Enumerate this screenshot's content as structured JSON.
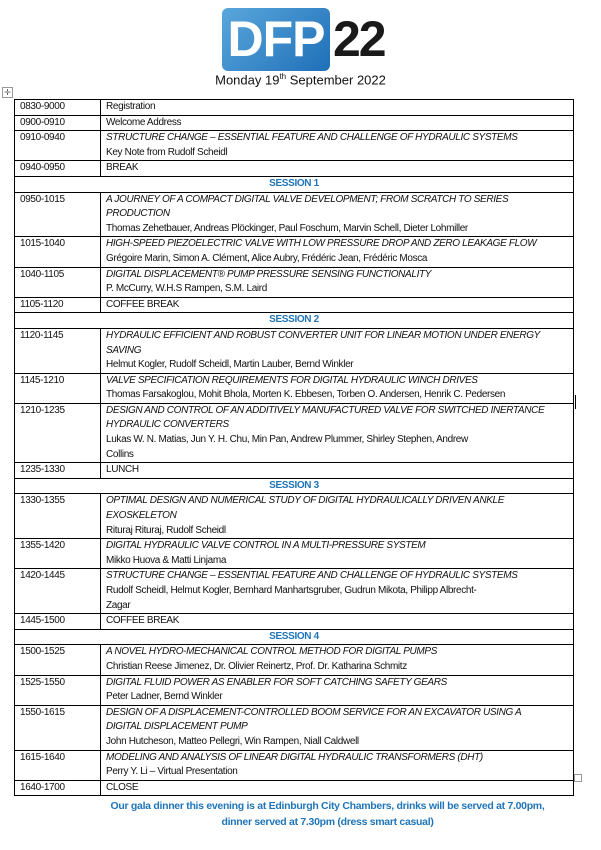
{
  "logo": {
    "text": "DFP",
    "number": "22",
    "color": "#1f6fb8"
  },
  "date": {
    "prefix": "Monday 19",
    "sup": "th",
    "suffix": " September 2022"
  },
  "rows": [
    {
      "time": "0830-9000",
      "lines": [
        "Registration"
      ]
    },
    {
      "time": "0900-0910",
      "lines": [
        "Welcome Address"
      ]
    },
    {
      "time": "0910-0940",
      "title": [
        "STRUCTURE CHANGE – ESSENTIAL FEATURE AND CHALLENGE OF HYDRAULIC SYSTEMS"
      ],
      "lines": [
        "Key Note from Rudolf Scheidl"
      ]
    },
    {
      "time": "0940-0950",
      "lines": [
        "BREAK"
      ]
    },
    {
      "session": "SESSION 1"
    },
    {
      "time": "0950-1015",
      "title": [
        "A JOURNEY OF A COMPACT DIGITAL VALVE DEVELOPMENT; FROM SCRATCH TO SERIES",
        "PRODUCTION"
      ],
      "lines": [
        "Thomas Zehetbauer, Andreas Plöckinger, Paul Foschum, Marvin Schell, Dieter Lohmiller"
      ]
    },
    {
      "time": "1015-1040",
      "title": [
        "HIGH-SPEED PIEZOELECTRIC VALVE WITH LOW PRESSURE DROP AND ZERO LEAKAGE FLOW"
      ],
      "lines": [
        "Grégoire Marin, Simon A. Clément, Alice Aubry, Frédéric Jean, Frédéric Mosca"
      ]
    },
    {
      "time": "1040-1105",
      "title": [
        "DIGITAL DISPLACEMENT® PUMP PRESSURE SENSING FUNCTIONALITY"
      ],
      "lines": [
        "P. McCurry, W.H.S Rampen, S.M. Laird"
      ]
    },
    {
      "time": "1105-1120",
      "lines": [
        "COFFEE BREAK"
      ]
    },
    {
      "session": "SESSION 2"
    },
    {
      "time": "1120-1145",
      "title": [
        "HYDRAULIC EFFICIENT AND ROBUST CONVERTER UNIT FOR LINEAR MOTION UNDER ENERGY",
        "SAVING"
      ],
      "lines": [
        "Helmut Kogler, Rudolf Scheidl, Martin Lauber, Bernd Winkler"
      ]
    },
    {
      "time": "1145-1210",
      "title": [
        "VALVE SPECIFICATION REQUIREMENTS FOR DIGITAL HYDRAULIC WINCH DRIVES"
      ],
      "lines": [
        "Thomas Farsakoglou, Mohit Bhola, Morten K. Ebbesen, Torben O. Andersen, Henrik C. Pedersen"
      ]
    },
    {
      "time": "1210-1235",
      "title": [
        "DESIGN AND CONTROL OF AN ADDITIVELY MANUFACTURED VALVE FOR SWITCHED INERTANCE",
        "HYDRAULIC CONVERTERS"
      ],
      "lines": [
        "Lukas W. N. Matias, Jun Y. H. Chu, Min Pan, Andrew Plummer, Shirley Stephen, Andrew",
        "Collins"
      ]
    },
    {
      "time": "1235-1330",
      "lines": [
        "LUNCH"
      ]
    },
    {
      "session": "SESSION 3"
    },
    {
      "time": "1330-1355",
      "title": [
        "OPTIMAL DESIGN AND NUMERICAL STUDY OF DIGITAL HYDRAULICALLY DRIVEN ANKLE",
        "EXOSKELETON"
      ],
      "lines": [
        "Rituraj Rituraj, Rudolf Scheidl"
      ]
    },
    {
      "time": "1355-1420",
      "title": [
        "DIGITAL HYDRAULIC VALVE CONTROL IN A MULTI-PRESSURE SYSTEM"
      ],
      "lines": [
        "Mikko Huova & Matti Linjama"
      ]
    },
    {
      "time": "1420-1445",
      "title": [
        "STRUCTURE CHANGE – ESSENTIAL FEATURE AND CHALLENGE OF HYDRAULIC SYSTEMS"
      ],
      "lines": [
        "Rudolf Scheidl, Helmut Kogler, Bernhard Manhartsgruber, Gudrun Mikota, Philipp Albrecht-",
        "Zagar"
      ]
    },
    {
      "time": "1445-1500",
      "lines": [
        "COFFEE BREAK"
      ]
    },
    {
      "session": "SESSION 4"
    },
    {
      "time": "1500-1525",
      "title": [
        "A NOVEL HYDRO-MECHANICAL CONTROL METHOD FOR DIGITAL PUMPS"
      ],
      "lines": [
        "Christian Reese Jimenez, Dr. Olivier Reinertz, Prof. Dr. Katharina Schmitz"
      ]
    },
    {
      "time": "1525-1550",
      "title": [
        "DIGITAL FLUID POWER AS ENABLER FOR SOFT CATCHING SAFETY GEARS"
      ],
      "lines": [
        "Peter Ladner, Bernd Winkler"
      ]
    },
    {
      "time": "1550-1615",
      "title": [
        "DESIGN OF A DISPLACEMENT-CONTROLLED BOOM SERVICE FOR AN EXCAVATOR USING A",
        "DIGITAL DISPLACEMENT PUMP"
      ],
      "lines": [
        "John Hutcheson, Matteo Pellegri, Win Rampen, Niall Caldwell"
      ]
    },
    {
      "time": "1615-1640",
      "title": [
        "MODELING AND ANALYSIS OF LINEAR DIGITAL HYDRAULIC TRANSFORMERS (DHT)"
      ],
      "lines": [
        "Perry Y. Li – Virtual Presentation"
      ]
    },
    {
      "time": "1640-1700",
      "lines": [
        "CLOSE"
      ]
    }
  ],
  "footer": {
    "line1": "Our gala dinner this evening is at Edinburgh City Chambers, drinks will be served at 7.00pm,",
    "line2": "dinner served at 7.30pm (dress smart casual)",
    "color": "#1f75b9"
  }
}
